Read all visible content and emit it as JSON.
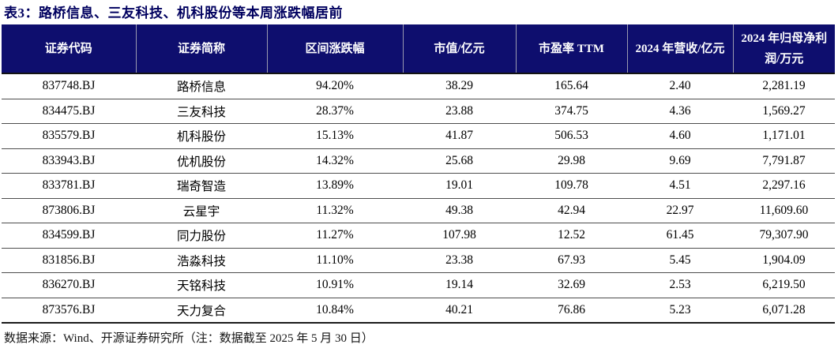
{
  "title": "表3：路桥信息、三友科技、机科股份等本周涨跌幅居前",
  "colors": {
    "header_bg": "#0e0e6e",
    "title_text": "#00005f",
    "header_text": "#ffffff",
    "row_divider": "#4d4d4d"
  },
  "table": {
    "columns": [
      "证券代码",
      "证券简称",
      "区间涨跌幅",
      "市值/亿元",
      "市盈率 TTM",
      "2024 年营收/亿元",
      "2024 年归母净利润/万元"
    ],
    "rows": [
      [
        "837748.BJ",
        "路桥信息",
        "94.20%",
        "38.29",
        "165.64",
        "2.40",
        "2,281.19"
      ],
      [
        "834475.BJ",
        "三友科技",
        "28.37%",
        "23.88",
        "374.75",
        "4.36",
        "1,569.27"
      ],
      [
        "835579.BJ",
        "机科股份",
        "15.13%",
        "41.87",
        "506.53",
        "4.60",
        "1,171.01"
      ],
      [
        "833943.BJ",
        "优机股份",
        "14.32%",
        "25.68",
        "29.98",
        "9.69",
        "7,791.87"
      ],
      [
        "833781.BJ",
        "瑞奇智造",
        "13.89%",
        "19.01",
        "109.78",
        "4.51",
        "2,297.16"
      ],
      [
        "873806.BJ",
        "云星宇",
        "11.32%",
        "49.38",
        "42.94",
        "22.97",
        "11,609.60"
      ],
      [
        "834599.BJ",
        "同力股份",
        "11.27%",
        "107.98",
        "12.52",
        "61.45",
        "79,307.90"
      ],
      [
        "831856.BJ",
        "浩淼科技",
        "11.10%",
        "23.38",
        "67.93",
        "5.45",
        "1,904.09"
      ],
      [
        "836270.BJ",
        "天铭科技",
        "10.91%",
        "19.14",
        "32.69",
        "2.53",
        "6,219.50"
      ],
      [
        "873576.BJ",
        "天力复合",
        "10.84%",
        "40.21",
        "76.86",
        "5.23",
        "6,071.28"
      ]
    ]
  },
  "footer": {
    "source_note": "数据来源：Wind、开源证券研究所（注：数据截至 2025 年 5 月 30 日）"
  }
}
